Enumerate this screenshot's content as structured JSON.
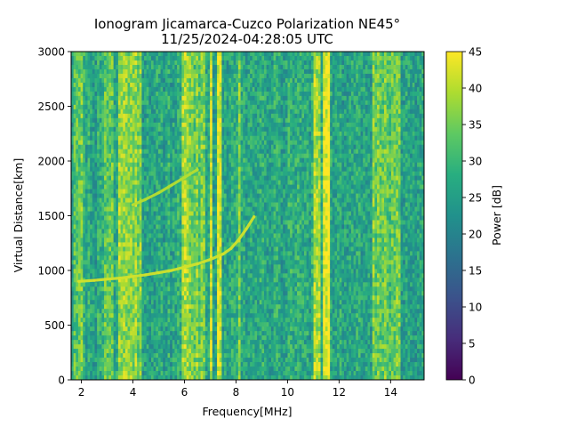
{
  "chart_data": {
    "type": "heatmap",
    "title": "Ionogram Jicamarca-Cuzco Polarization NE45°",
    "subtitle": "11/25/2024-04:28:05 UTC",
    "xlabel": "Frequency[MHz]",
    "ylabel": "Virtual Distance[km]",
    "xlim": [
      1.6,
      15.3
    ],
    "ylim": [
      0,
      3000
    ],
    "x_ticks": [
      2,
      4,
      6,
      8,
      10,
      12,
      14
    ],
    "x_tick_labels": [
      "2",
      "4",
      "6",
      "8",
      "10",
      "12",
      "14"
    ],
    "y_ticks": [
      0,
      500,
      1000,
      1500,
      2000,
      2500,
      3000
    ],
    "y_tick_labels": [
      "0",
      "500",
      "1000",
      "1500",
      "2000",
      "2500",
      "3000"
    ],
    "colorbar": {
      "label": "Power [dB]",
      "colormap": "viridis",
      "range": [
        0,
        45
      ],
      "ticks": [
        0,
        5,
        10,
        15,
        20,
        25,
        30,
        35,
        40,
        45
      ],
      "tick_labels": [
        "0",
        "5",
        "10",
        "15",
        "20",
        "25",
        "30",
        "35",
        "40",
        "45"
      ]
    },
    "background_power_db": 27,
    "bright_bands_mhz": [
      {
        "from": 1.7,
        "to": 2.1,
        "power_db": 34
      },
      {
        "from": 2.9,
        "to": 3.2,
        "power_db": 32
      },
      {
        "from": 3.4,
        "to": 4.3,
        "power_db": 36
      },
      {
        "from": 5.9,
        "to": 6.2,
        "power_db": 40
      },
      {
        "from": 6.2,
        "to": 6.8,
        "power_db": 35
      },
      {
        "from": 7.0,
        "to": 7.1,
        "power_db": 40
      },
      {
        "from": 7.3,
        "to": 7.4,
        "power_db": 43
      },
      {
        "from": 8.1,
        "to": 8.2,
        "power_db": 36
      },
      {
        "from": 11.0,
        "to": 11.25,
        "power_db": 40
      },
      {
        "from": 11.35,
        "to": 11.65,
        "power_db": 45
      },
      {
        "from": 13.3,
        "to": 14.4,
        "power_db": 34
      }
    ],
    "series": [
      {
        "trace": "echo-trace-lower",
        "x": [
          1.9,
          2.5,
          3.0,
          3.5,
          4.0,
          4.5,
          5.0,
          5.5,
          6.0,
          6.5,
          7.0,
          7.5,
          7.8,
          8.1,
          8.4,
          8.7
        ],
        "y": [
          900,
          910,
          920,
          930,
          945,
          960,
          980,
          1000,
          1030,
          1060,
          1100,
          1150,
          1200,
          1280,
          1380,
          1490
        ],
        "power_db": 42
      },
      {
        "trace": "echo-trace-upper",
        "x": [
          4.0,
          4.5,
          5.0,
          5.5,
          6.0,
          6.5
        ],
        "y": [
          1600,
          1650,
          1710,
          1780,
          1850,
          1920
        ],
        "power_db": 40
      }
    ]
  }
}
